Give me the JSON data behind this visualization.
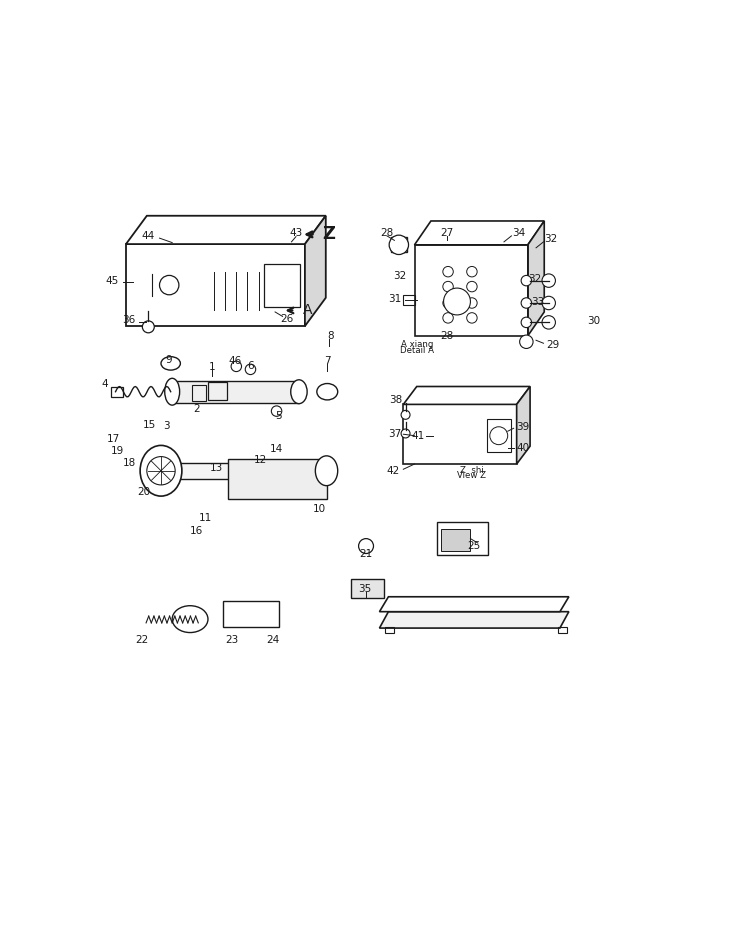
{
  "bg_color": "#ffffff",
  "line_color": "#1a1a1a",
  "fig_width": 7.47,
  "fig_height": 9.43,
  "dpi": 100,
  "detail_a_text1": "A xiang",
  "detail_a_text2": "Detail A",
  "view_z_text1": "Z shi",
  "view_z_text2": "View Z",
  "xlim": [
    0,
    1
  ],
  "ylim": [
    0,
    1
  ]
}
